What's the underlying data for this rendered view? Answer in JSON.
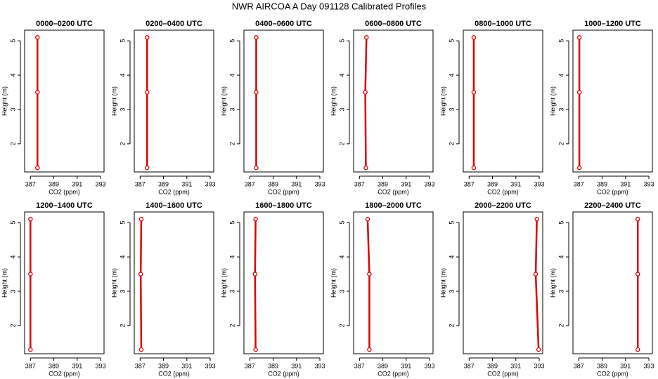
{
  "title": "NWR AIRCOA A  Day 091128  Calibrated Profiles",
  "chart_data": [
    {
      "type": "line",
      "title": "0000–0200 UTC",
      "x_label": "CO2 (ppm)",
      "y_label": "Height (m)",
      "x": [
        387.6,
        387.6,
        387.6
      ],
      "y": [
        1.3,
        3.5,
        5.1
      ],
      "color": "#dd0000",
      "xlim": [
        386.5,
        393.3
      ],
      "ylim": [
        1.18,
        5.31
      ],
      "xticks": [
        387,
        389,
        391,
        393
      ],
      "yticks": [
        2,
        3,
        4,
        5
      ]
    },
    {
      "type": "line",
      "title": "0200–0400 UTC",
      "x_label": "CO2 (ppm)",
      "y_label": "Height (m)",
      "x": [
        387.6,
        387.6,
        387.6
      ],
      "y": [
        1.3,
        3.5,
        5.1
      ],
      "color": "#dd0000",
      "xlim": [
        386.5,
        393.3
      ],
      "ylim": [
        1.18,
        5.31
      ],
      "xticks": [
        387,
        389,
        391,
        393
      ],
      "yticks": [
        2,
        3,
        4,
        5
      ]
    },
    {
      "type": "line",
      "title": "0400–0600 UTC",
      "x_label": "CO2 (ppm)",
      "y_label": "Height (m)",
      "x": [
        387.55,
        387.55,
        387.55
      ],
      "y": [
        1.3,
        3.5,
        5.1
      ],
      "color": "#dd0000",
      "xlim": [
        386.5,
        393.3
      ],
      "ylim": [
        1.18,
        5.31
      ],
      "xticks": [
        387,
        389,
        391,
        393
      ],
      "yticks": [
        2,
        3,
        4,
        5
      ]
    },
    {
      "type": "line",
      "title": "0600–0800 UTC",
      "x_label": "CO2 (ppm)",
      "y_label": "Height (m)",
      "x": [
        387.55,
        387.5,
        387.6
      ],
      "y": [
        1.3,
        3.5,
        5.1
      ],
      "color": "#dd0000",
      "xlim": [
        386.5,
        393.3
      ],
      "ylim": [
        1.18,
        5.31
      ],
      "xticks": [
        387,
        389,
        391,
        393
      ],
      "yticks": [
        2,
        3,
        4,
        5
      ]
    },
    {
      "type": "line",
      "title": "0800–1000 UTC",
      "x_label": "CO2 (ppm)",
      "y_label": "Height (m)",
      "x": [
        387.4,
        387.4,
        387.4
      ],
      "y": [
        1.3,
        3.5,
        5.1
      ],
      "color": "#dd0000",
      "xlim": [
        386.5,
        393.3
      ],
      "ylim": [
        1.18,
        5.31
      ],
      "xticks": [
        387,
        389,
        391,
        393
      ],
      "yticks": [
        2,
        3,
        4,
        5
      ]
    },
    {
      "type": "line",
      "title": "1000–1200 UTC",
      "x_label": "CO2 (ppm)",
      "y_label": "Height (m)",
      "x": [
        387.05,
        387.05,
        387.05
      ],
      "y": [
        1.3,
        3.5,
        5.1
      ],
      "color": "#dd0000",
      "xlim": [
        386.5,
        393.3
      ],
      "ylim": [
        1.18,
        5.31
      ],
      "xticks": [
        387,
        389,
        391,
        393
      ],
      "yticks": [
        2,
        3,
        4,
        5
      ]
    },
    {
      "type": "line",
      "title": "1200–1400 UTC",
      "x_label": "CO2 (ppm)",
      "y_label": "Height (m)",
      "x": [
        387.0,
        387.0,
        387.0
      ],
      "y": [
        1.3,
        3.5,
        5.1
      ],
      "color": "#dd0000",
      "xlim": [
        386.5,
        393.3
      ],
      "ylim": [
        1.18,
        5.31
      ],
      "xticks": [
        387,
        389,
        391,
        393
      ],
      "yticks": [
        2,
        3,
        4,
        5
      ]
    },
    {
      "type": "line",
      "title": "1400–1600 UTC",
      "x_label": "CO2 (ppm)",
      "y_label": "Height (m)",
      "x": [
        387.1,
        387.05,
        387.1
      ],
      "y": [
        1.3,
        3.5,
        5.1
      ],
      "color": "#dd0000",
      "xlim": [
        386.5,
        393.3
      ],
      "ylim": [
        1.18,
        5.31
      ],
      "xticks": [
        387,
        389,
        391,
        393
      ],
      "yticks": [
        2,
        3,
        4,
        5
      ]
    },
    {
      "type": "line",
      "title": "1600–1800 UTC",
      "x_label": "CO2 (ppm)",
      "y_label": "Height (m)",
      "x": [
        387.5,
        387.45,
        387.5
      ],
      "y": [
        1.3,
        3.5,
        5.1
      ],
      "color": "#dd0000",
      "xlim": [
        386.5,
        393.3
      ],
      "ylim": [
        1.18,
        5.31
      ],
      "xticks": [
        387,
        389,
        391,
        393
      ],
      "yticks": [
        2,
        3,
        4,
        5
      ]
    },
    {
      "type": "line",
      "title": "1800–2000 UTC",
      "x_label": "CO2 (ppm)",
      "y_label": "Height (m)",
      "x": [
        387.85,
        387.85,
        387.7
      ],
      "y": [
        1.3,
        3.5,
        5.1
      ],
      "color": "#dd0000",
      "xlim": [
        386.5,
        393.3
      ],
      "ylim": [
        1.18,
        5.31
      ],
      "xticks": [
        387,
        389,
        391,
        393
      ],
      "yticks": [
        2,
        3,
        4,
        5
      ]
    },
    {
      "type": "line",
      "title": "2000–2200 UTC",
      "x_label": "CO2 (ppm)",
      "y_label": "Height (m)",
      "x": [
        392.95,
        392.7,
        392.8
      ],
      "y": [
        1.3,
        3.5,
        5.1
      ],
      "color": "#dd0000",
      "xlim": [
        386.5,
        393.3
      ],
      "ylim": [
        1.18,
        5.31
      ],
      "xticks": [
        387,
        389,
        391,
        393
      ],
      "yticks": [
        2,
        3,
        4,
        5
      ]
    },
    {
      "type": "line",
      "title": "2200–2400 UTC",
      "x_label": "CO2 (ppm)",
      "y_label": "Height (m)",
      "x": [
        392.05,
        392.05,
        392.05
      ],
      "y": [
        1.3,
        3.5,
        5.1
      ],
      "color": "#dd0000",
      "xlim": [
        386.5,
        393.3
      ],
      "ylim": [
        1.18,
        5.31
      ],
      "xticks": [
        387,
        389,
        391,
        393
      ],
      "yticks": [
        2,
        3,
        4,
        5
      ]
    }
  ]
}
